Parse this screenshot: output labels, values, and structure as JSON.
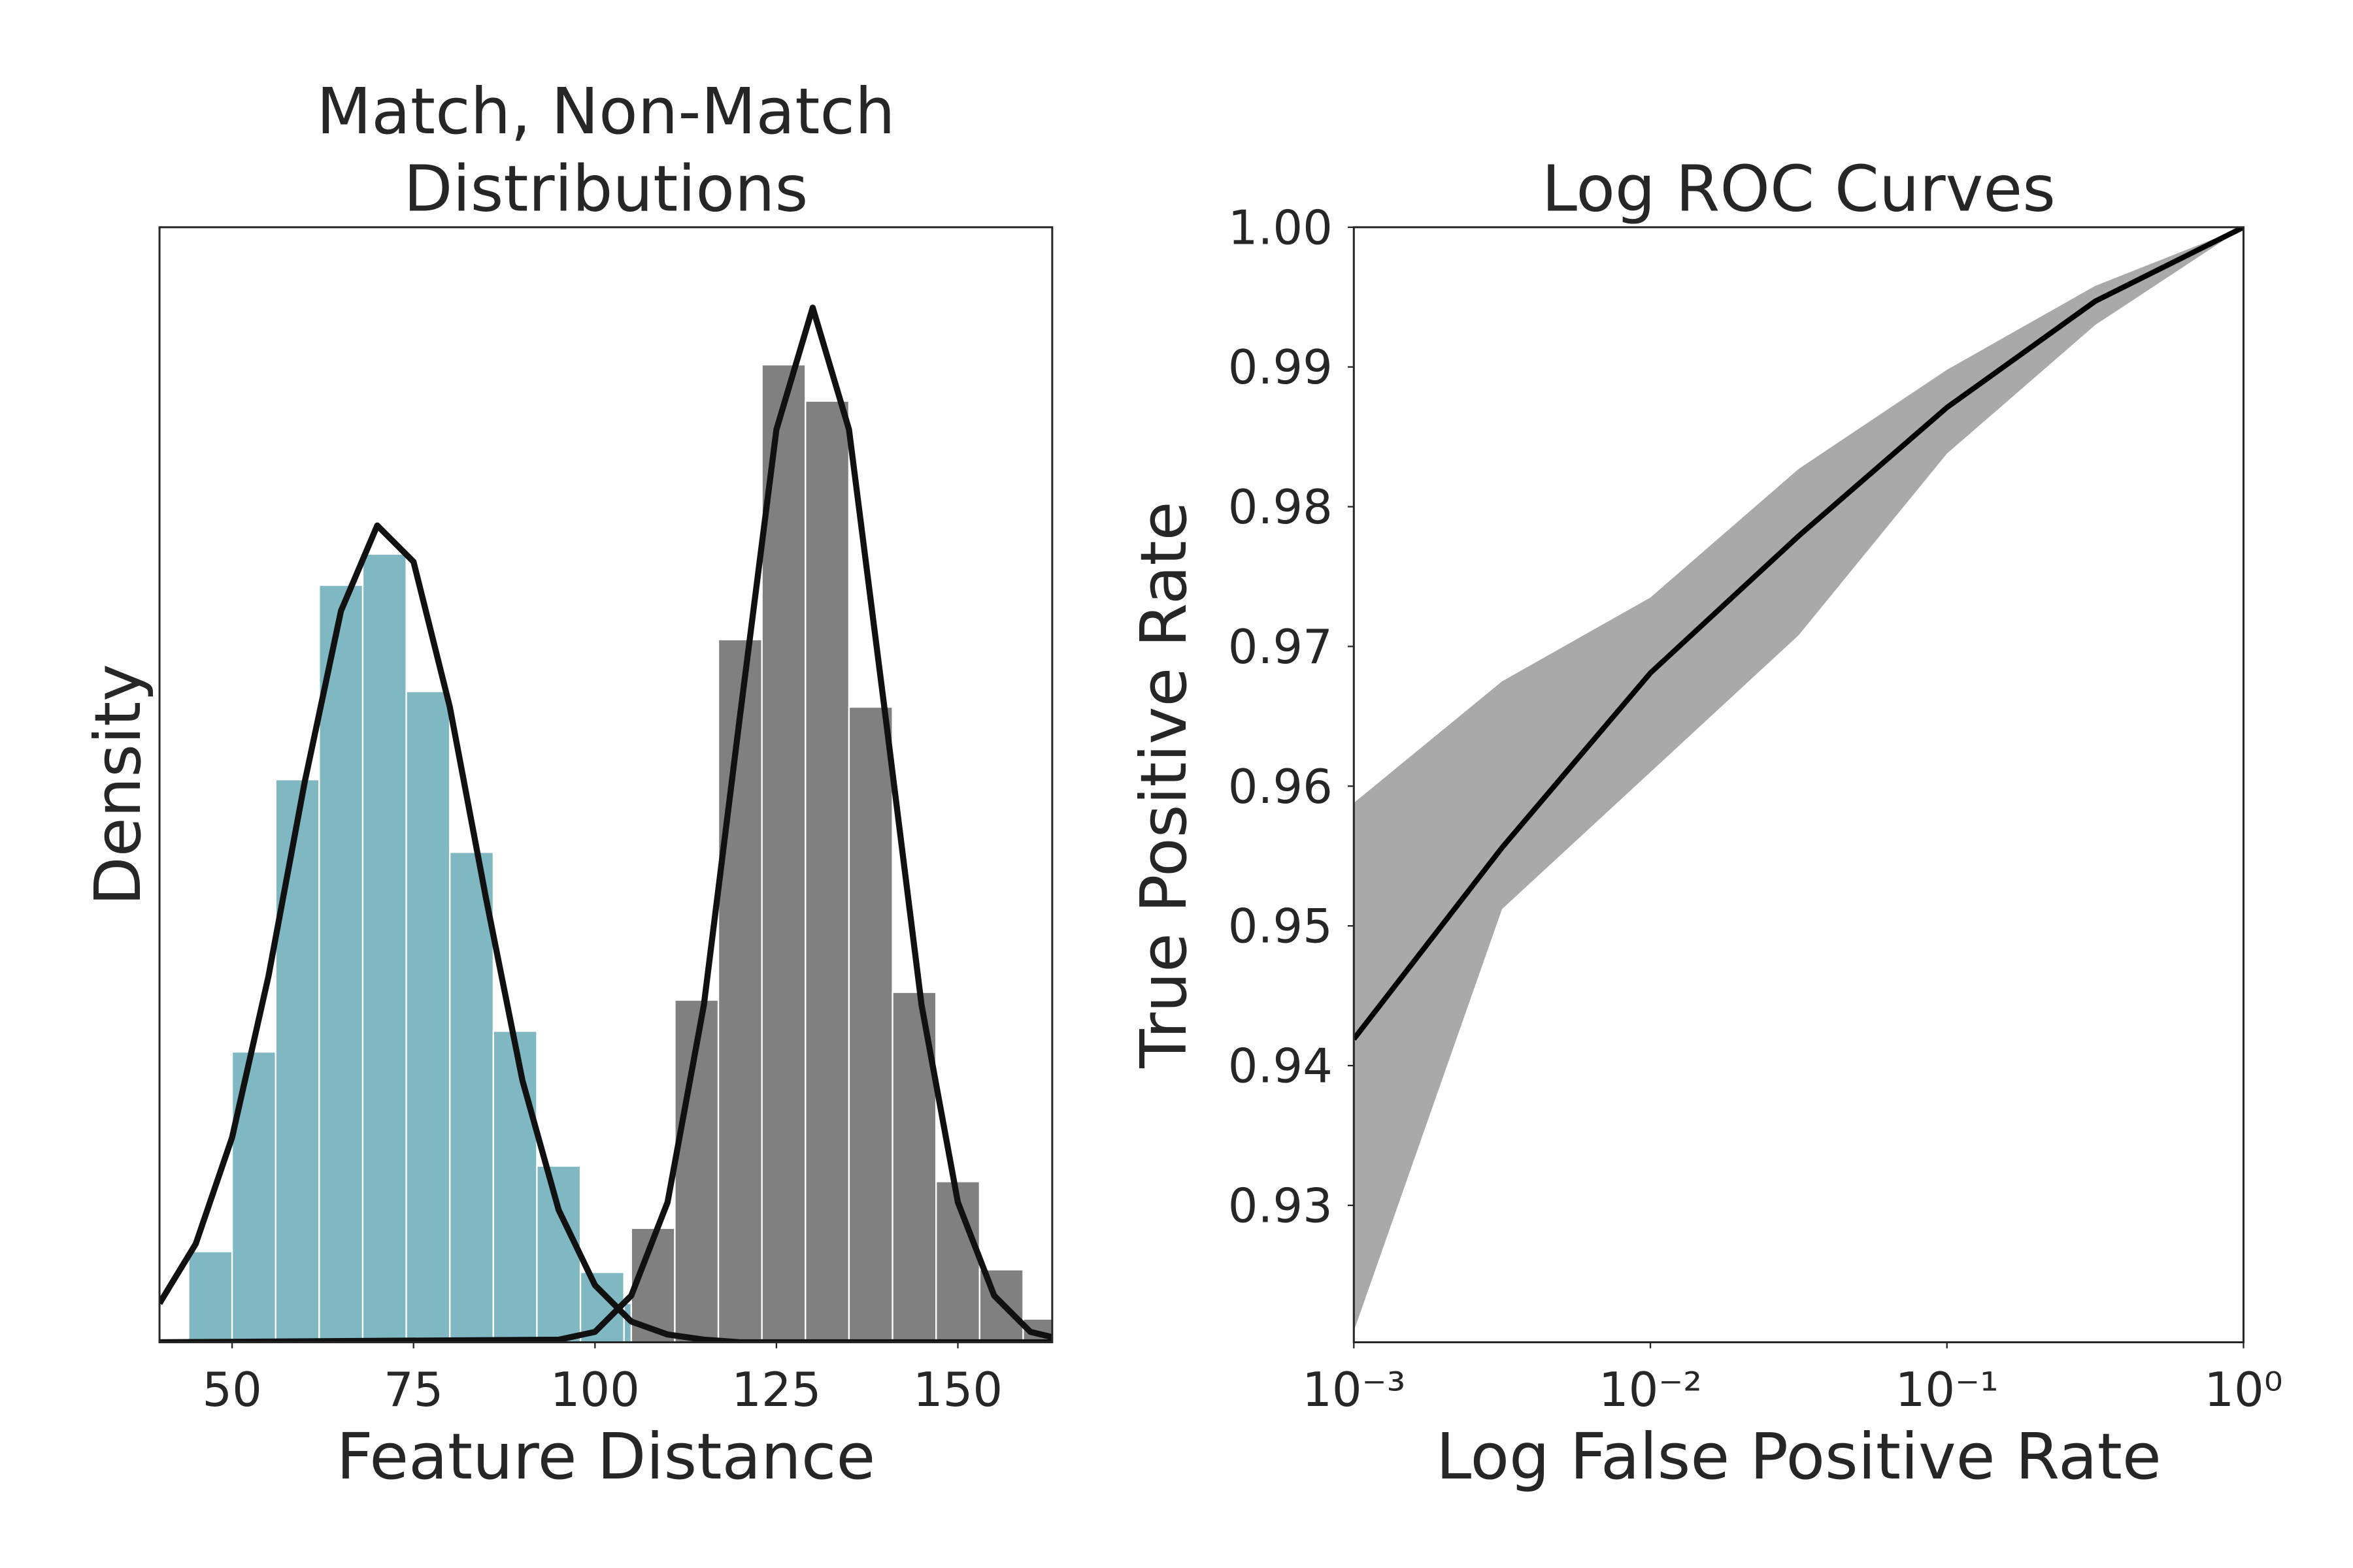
{
  "chart_data": [
    {
      "type": "histogram",
      "title": [
        "Match, Non-Match",
        "Distributions"
      ],
      "x_label": "Feature Distance",
      "y_label": "Density",
      "xlim": [
        40,
        163
      ],
      "ylim": [
        0,
        0.043
      ],
      "xticks": [
        50,
        75,
        100,
        125,
        150
      ],
      "series": [
        {
          "color": "#7fb8c3",
          "bins": [
            44,
            50,
            56,
            62,
            68,
            74,
            80,
            86,
            92,
            98,
            104,
            110
          ],
          "values": [
            0.0035,
            0.0112,
            0.0217,
            0.0292,
            0.0304,
            0.0251,
            0.0189,
            0.012,
            0.0068,
            0.0027,
            0.0015
          ]
        },
        {
          "color": "#808080",
          "bins": [
            105,
            111,
            117,
            123,
            129,
            135,
            141,
            147,
            153,
            159,
            165
          ],
          "values": [
            0.0044,
            0.0132,
            0.0271,
            0.0377,
            0.0363,
            0.0245,
            0.0135,
            0.0062,
            0.0028,
            0.0009
          ]
        }
      ],
      "fits": [
        {
          "color": "#111111",
          "x": [
            40,
            45,
            50,
            55,
            60,
            65,
            70,
            75,
            80,
            85,
            90,
            95,
            100,
            105,
            110,
            115,
            120,
            125,
            163
          ],
          "values": [
            0.0015,
            0.0038,
            0.0079,
            0.0141,
            0.0216,
            0.0282,
            0.0315,
            0.0301,
            0.0245,
            0.0171,
            0.0101,
            0.0051,
            0.0022,
            0.0008,
            0.0003,
            0.0001,
            0,
            0,
            0
          ]
        },
        {
          "color": "#111111",
          "x": [
            40,
            95,
            100,
            105,
            110,
            115,
            120,
            125,
            130,
            135,
            140,
            145,
            150,
            155,
            160,
            163
          ],
          "values": [
            0,
            0.0001,
            0.0004,
            0.0018,
            0.0054,
            0.013,
            0.0242,
            0.0352,
            0.0399,
            0.0352,
            0.0242,
            0.013,
            0.0054,
            0.0018,
            0.0004,
            0.0002
          ]
        }
      ]
    },
    {
      "type": "line",
      "title": "Log ROC Curves",
      "x_label": "Log False Positive Rate",
      "y_label": "True Positive Rate",
      "xscale": "log",
      "xlim": [
        0.001,
        1
      ],
      "ylim": [
        0.9202,
        1.0
      ],
      "xticks": [
        {
          "value": 0.001,
          "label": "10⁻³"
        },
        {
          "value": 0.01,
          "label": "10⁻²"
        },
        {
          "value": 0.1,
          "label": "10⁻¹"
        },
        {
          "value": 1,
          "label": "10⁰"
        }
      ],
      "yticks": [
        0.93,
        0.94,
        0.95,
        0.96,
        0.97,
        0.98,
        0.99,
        {
          "value": 1.0,
          "label": "1.00"
        }
      ],
      "x": [
        0.001,
        0.00316,
        0.01,
        0.0316,
        0.1,
        0.316,
        1
      ],
      "band_color": "#8c8c8c",
      "band_lower": [
        0.921,
        0.9512,
        0.961,
        0.9708,
        0.9838,
        0.993,
        1.0
      ],
      "band_upper": [
        0.9588,
        0.9675,
        0.9735,
        0.9827,
        0.9898,
        0.9958,
        1.0
      ],
      "color": "#000000",
      "values": [
        0.9419,
        0.9556,
        0.9681,
        0.9779,
        0.9871,
        0.9947,
        1.0
      ]
    }
  ]
}
